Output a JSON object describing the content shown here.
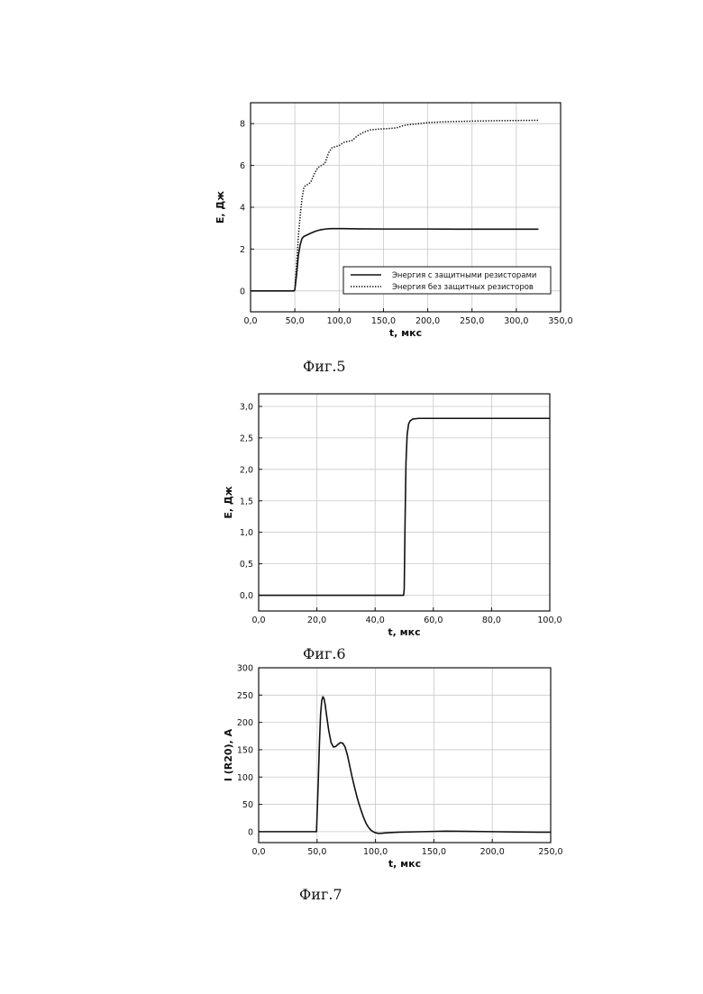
{
  "chart_data": [
    {
      "id": "fig5",
      "type": "line",
      "caption": "Фиг.5",
      "xlabel": "t, мкс",
      "ylabel": "E, Дж",
      "xlim": [
        0,
        350
      ],
      "ylim": [
        -1,
        9
      ],
      "xticks": [
        0,
        50,
        100,
        150,
        200,
        250,
        300,
        350
      ],
      "xtick_labels": [
        "0,0",
        "50,0",
        "100,0",
        "150,0",
        "200,0",
        "250,0",
        "300,0",
        "350,0"
      ],
      "yticks": [
        0,
        2,
        4,
        6,
        8
      ],
      "ytick_labels": [
        "0",
        "2",
        "4",
        "6",
        "8"
      ],
      "grid": true,
      "legend": "bottom-right",
      "series": [
        {
          "name": "Энергия с защитными резисторами",
          "style": "solid",
          "x": [
            0,
            49,
            50,
            52,
            54,
            56,
            58,
            60,
            65,
            70,
            75,
            80,
            85,
            90,
            100,
            120,
            150,
            200,
            250,
            300,
            325
          ],
          "y": [
            0,
            0,
            0.05,
            0.8,
            1.7,
            2.2,
            2.5,
            2.6,
            2.7,
            2.8,
            2.88,
            2.93,
            2.96,
            2.98,
            2.98,
            2.97,
            2.96,
            2.96,
            2.95,
            2.95,
            2.95
          ]
        },
        {
          "name": "Энергия без защитных резисторов",
          "style": "dotted",
          "x": [
            0,
            49,
            50,
            52,
            54,
            56,
            58,
            60,
            62,
            65,
            68,
            72,
            76,
            80,
            84,
            88,
            92,
            96,
            100,
            105,
            110,
            115,
            120,
            128,
            135,
            140,
            148,
            155,
            165,
            172,
            178,
            190,
            200,
            215,
            230,
            250,
            275,
            300,
            325
          ],
          "y": [
            0,
            0,
            0.1,
            1.3,
            2.6,
            3.6,
            4.4,
            4.9,
            5.05,
            5.1,
            5.2,
            5.6,
            5.9,
            6.0,
            6.1,
            6.6,
            6.85,
            6.9,
            6.95,
            7.1,
            7.15,
            7.2,
            7.4,
            7.6,
            7.7,
            7.72,
            7.75,
            7.76,
            7.8,
            7.9,
            7.95,
            8.0,
            8.05,
            8.08,
            8.1,
            8.12,
            8.14,
            8.15,
            8.16
          ]
        }
      ]
    },
    {
      "id": "fig6",
      "type": "line",
      "caption": "Фиг.6",
      "xlabel": "t, мкс",
      "ylabel": "E, Дж",
      "xlim": [
        0,
        100
      ],
      "ylim": [
        -0.25,
        3.2
      ],
      "xticks": [
        0,
        20,
        40,
        60,
        80,
        100
      ],
      "xtick_labels": [
        "0,0",
        "20,0",
        "40,0",
        "60,0",
        "80,0",
        "100,0"
      ],
      "yticks": [
        0,
        0.5,
        1.0,
        1.5,
        2.0,
        2.5,
        3.0
      ],
      "ytick_labels": [
        "0,0",
        "0,5",
        "1,0",
        "1,5",
        "2,0",
        "2,5",
        "3,0"
      ],
      "grid": true,
      "series": [
        {
          "style": "solid",
          "x": [
            0,
            49.8,
            50,
            50.3,
            50.6,
            51,
            51.5,
            52,
            53,
            55,
            60,
            70,
            100
          ],
          "y": [
            0,
            0,
            0.1,
            1.2,
            2.1,
            2.55,
            2.72,
            2.77,
            2.8,
            2.81,
            2.81,
            2.81,
            2.81
          ]
        }
      ]
    },
    {
      "id": "fig7",
      "type": "line",
      "caption": "Фиг.7",
      "xlabel": "t, мкс",
      "ylabel": "I (R20), A",
      "xlim": [
        0,
        250
      ],
      "ylim": [
        -20,
        300
      ],
      "xticks": [
        0,
        50,
        100,
        150,
        200,
        250
      ],
      "xtick_labels": [
        "0,0",
        "50,0",
        "100,0",
        "150,0",
        "200,0",
        "250,0"
      ],
      "yticks": [
        0,
        50,
        100,
        150,
        200,
        250,
        300
      ],
      "ytick_labels": [
        "0",
        "50",
        "100",
        "150",
        "200",
        "250",
        "300"
      ],
      "grid": true,
      "series": [
        {
          "style": "solid",
          "x": [
            0,
            49.5,
            50,
            51,
            52,
            53,
            54,
            55,
            56,
            57,
            58,
            60,
            62,
            64,
            66,
            68,
            70,
            72,
            74,
            76,
            78,
            80,
            82,
            84,
            86,
            88,
            90,
            92,
            94,
            96,
            98,
            100,
            102,
            105,
            110,
            120,
            140,
            160,
            180,
            200,
            220,
            240,
            250
          ],
          "y": [
            0,
            0,
            30,
            90,
            160,
            215,
            240,
            247,
            243,
            232,
            215,
            185,
            163,
            155,
            156,
            160,
            163,
            162,
            155,
            140,
            120,
            100,
            82,
            65,
            50,
            37,
            25,
            15,
            8,
            3,
            0,
            -2,
            -3,
            -3,
            -2,
            -1,
            0,
            1,
            0.5,
            0,
            -0.5,
            -1,
            -1
          ]
        }
      ]
    }
  ]
}
